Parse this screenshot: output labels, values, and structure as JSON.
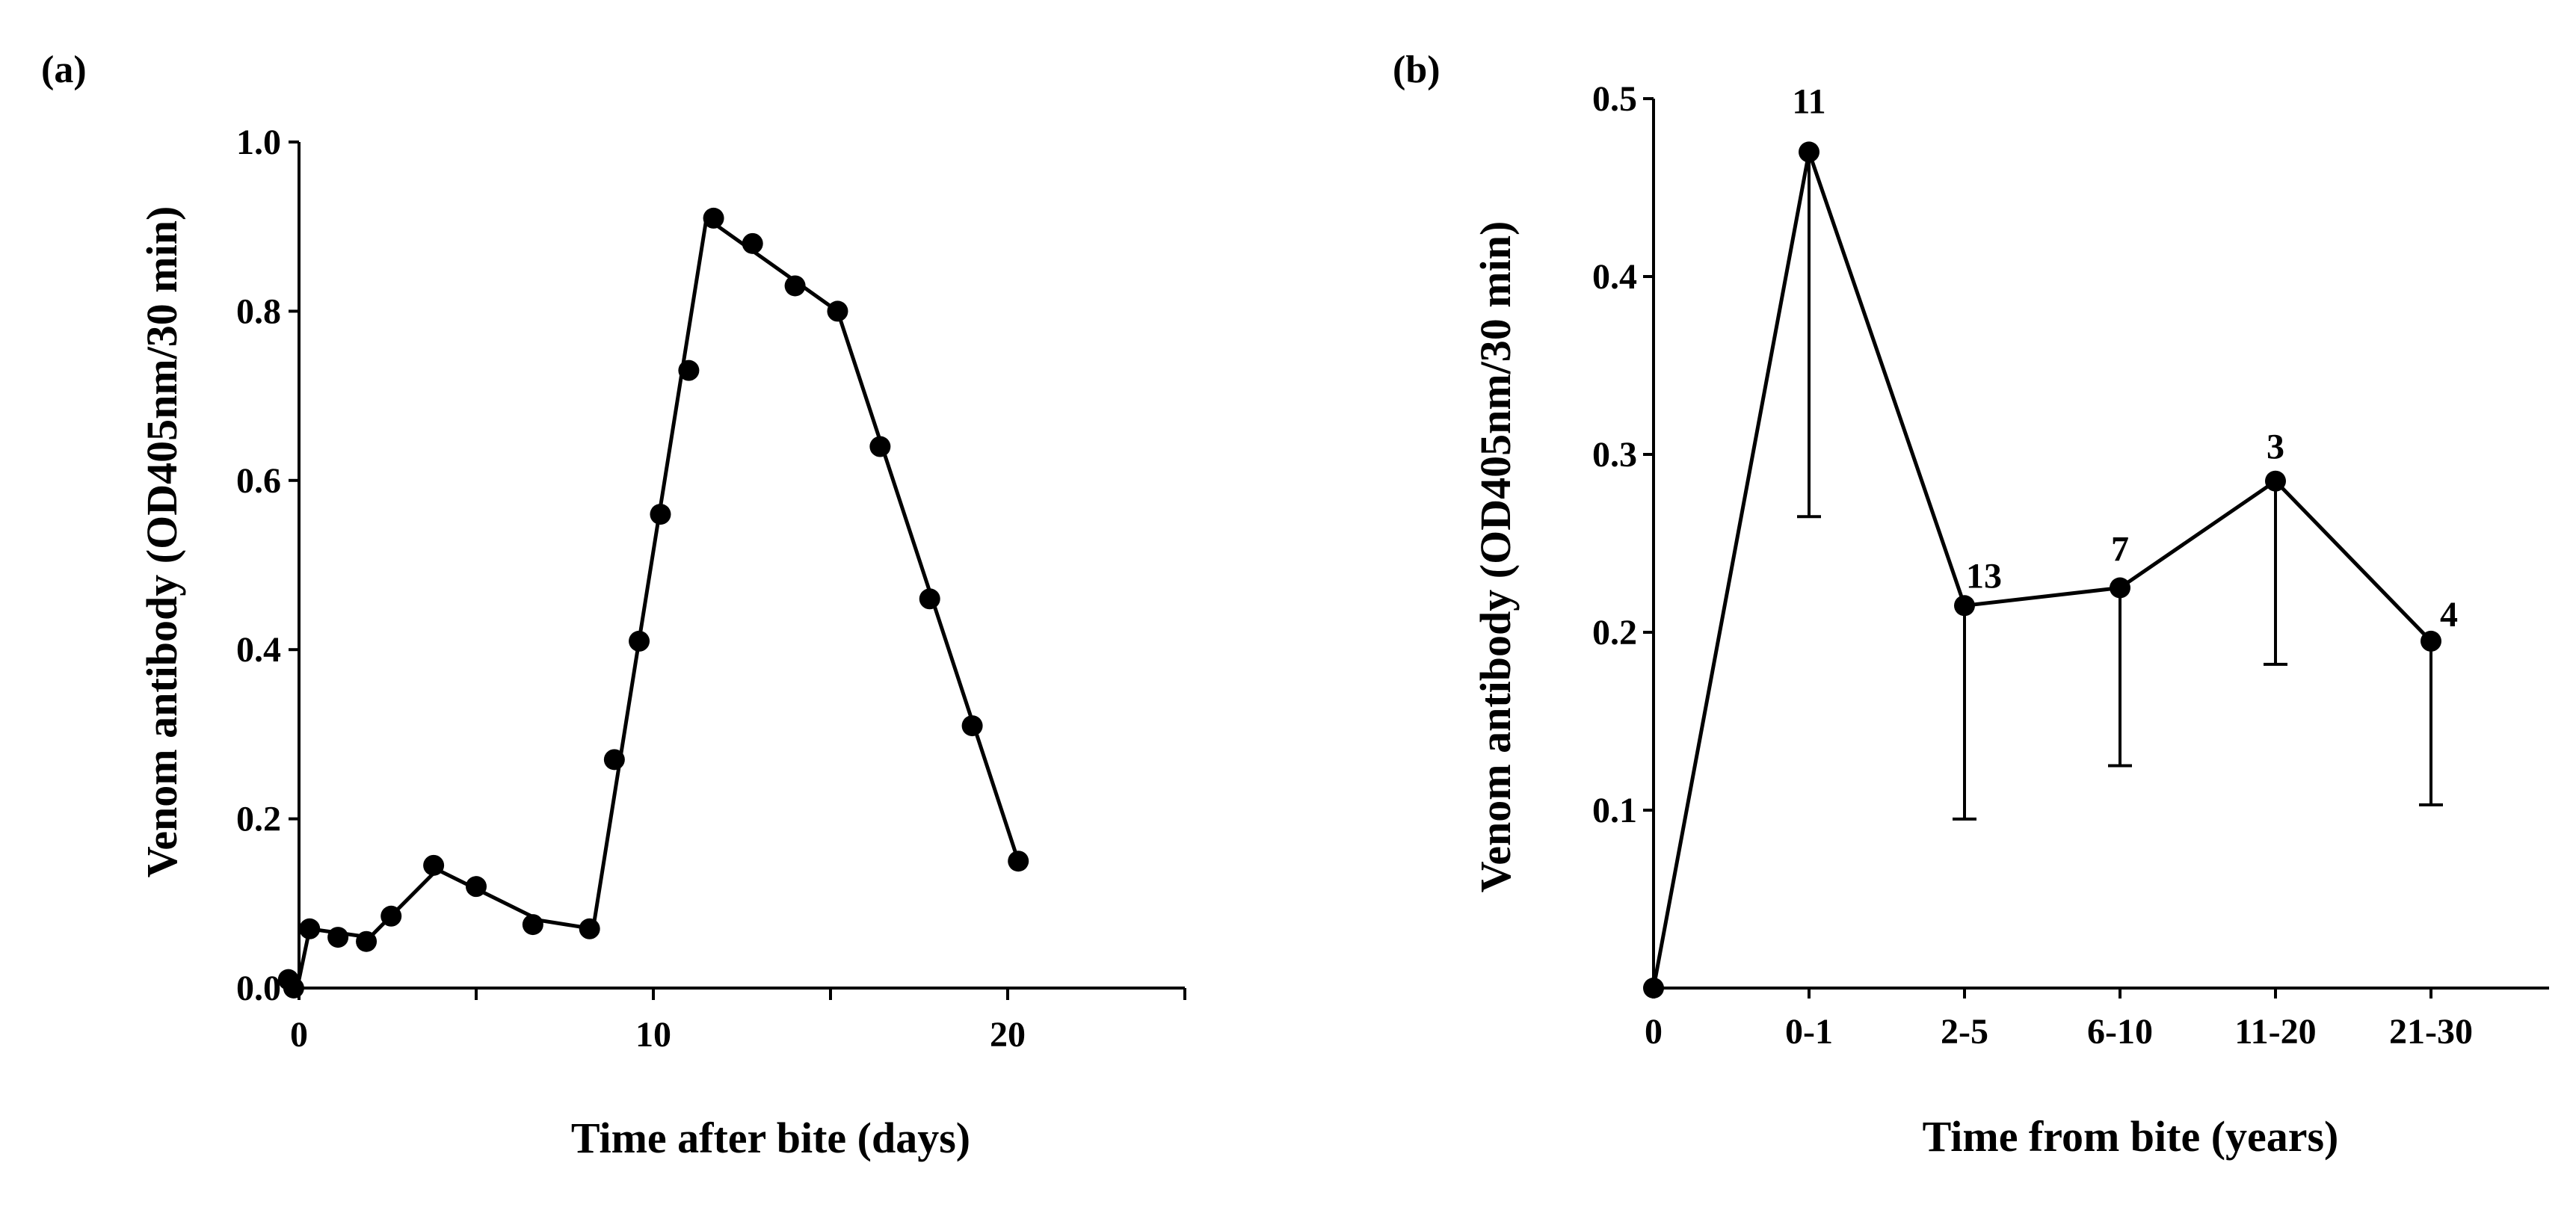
{
  "figure": {
    "background": "#ffffff",
    "ink": "#000000"
  },
  "chart_data": [
    {
      "panel": "(a)",
      "type": "line",
      "xlabel": "Time after bite (days)",
      "ylabel": "Venom antibody (OD405nm/30 min)",
      "xlim": [
        0,
        25
      ],
      "ylim": [
        0,
        1.0
      ],
      "xticks": [
        "0",
        "10",
        "20"
      ],
      "yticks": [
        "0.0",
        "0.2",
        "0.4",
        "0.6",
        "0.8",
        "1.0"
      ],
      "grid": false,
      "line": {
        "x": [
          -0.3,
          0.0,
          0.3,
          2.0,
          3.9,
          6.8,
          8.3,
          11.5,
          15.2,
          20.3
        ],
        "y": [
          0.0,
          0.01,
          0.07,
          0.06,
          0.14,
          0.08,
          0.07,
          0.91,
          0.8,
          0.15
        ]
      },
      "points": {
        "x": [
          -0.3,
          -0.15,
          0.3,
          1.1,
          1.9,
          2.6,
          3.8,
          5.0,
          6.6,
          8.2,
          8.9,
          9.6,
          10.2,
          11.0,
          11.7,
          12.8,
          14.0,
          15.2,
          16.4,
          17.8,
          19.0,
          20.3
        ],
        "y": [
          0.01,
          0.0,
          0.07,
          0.06,
          0.055,
          0.085,
          0.145,
          0.12,
          0.075,
          0.07,
          0.27,
          0.41,
          0.56,
          0.73,
          0.91,
          0.88,
          0.83,
          0.8,
          0.64,
          0.46,
          0.31,
          0.15
        ]
      }
    },
    {
      "panel": "(b)",
      "type": "line",
      "xlabel": "Time from bite (years)",
      "ylabel": "Venom antibody (OD405nm/30 min)",
      "categories": [
        "0",
        "0-1",
        "2-5",
        "6-10",
        "11-20",
        "21-30"
      ],
      "ylim": [
        0,
        0.5
      ],
      "yticks": [
        "0.1",
        "0.2",
        "0.3",
        "0.4",
        "0.5"
      ],
      "grid": false,
      "values": [
        0.0,
        0.47,
        0.215,
        0.225,
        0.285,
        0.195
      ],
      "error_lower": [
        null,
        0.265,
        0.095,
        0.125,
        0.182,
        0.103
      ],
      "n_labels": [
        "",
        "11",
        "13",
        "7",
        "3",
        "4"
      ]
    }
  ]
}
